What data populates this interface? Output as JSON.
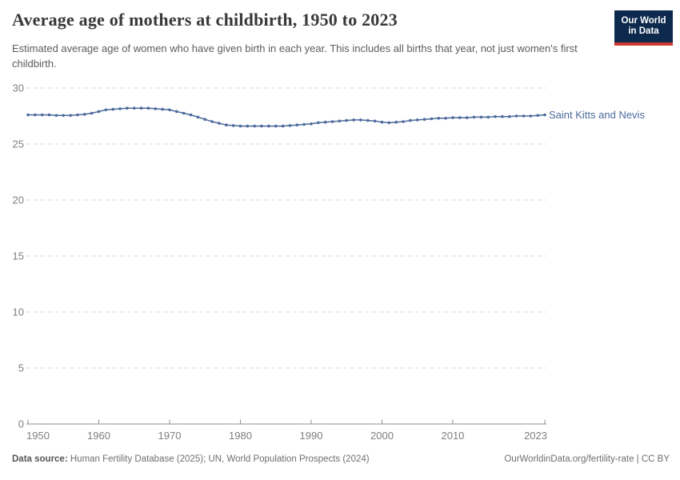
{
  "header": {
    "title": "Average age of mothers at childbirth, 1950 to 2023",
    "subtitle": "Estimated average age of women who have given birth in each year. This includes all births that year, not just women's first childbirth."
  },
  "logo": {
    "line1": "Our World",
    "line2": "in Data",
    "bg_color": "#0d2a4e",
    "accent_color": "#cf3830"
  },
  "chart_data": {
    "type": "line",
    "title": "Average age of mothers at childbirth, 1950 to 2023",
    "series": [
      {
        "name": "Saint Kitts and Nevis",
        "color": "#4c6a9c",
        "x_range": [
          1950,
          2023
        ],
        "x_step": 1,
        "values": [
          27.6,
          27.6,
          27.6,
          27.6,
          27.55,
          27.55,
          27.55,
          27.6,
          27.65,
          27.75,
          27.9,
          28.05,
          28.1,
          28.15,
          28.2,
          28.2,
          28.2,
          28.2,
          28.15,
          28.1,
          28.05,
          27.9,
          27.75,
          27.6,
          27.4,
          27.2,
          27.0,
          26.85,
          26.7,
          26.65,
          26.6,
          26.6,
          26.6,
          26.6,
          26.6,
          26.6,
          26.6,
          26.65,
          26.7,
          26.75,
          26.8,
          26.9,
          26.95,
          27.0,
          27.05,
          27.1,
          27.15,
          27.15,
          27.1,
          27.05,
          26.95,
          26.9,
          26.95,
          27.0,
          27.1,
          27.15,
          27.2,
          27.25,
          27.3,
          27.3,
          27.35,
          27.35,
          27.35,
          27.4,
          27.4,
          27.4,
          27.45,
          27.45,
          27.45,
          27.5,
          27.5,
          27.5,
          27.55,
          27.6
        ]
      }
    ],
    "xticks": [
      1950,
      1960,
      1970,
      1980,
      1990,
      2000,
      2010,
      2023
    ],
    "yticks": [
      0,
      5,
      10,
      15,
      20,
      25,
      30
    ],
    "ylim": [
      0,
      30
    ],
    "xlabel": "",
    "ylabel": "",
    "grid": "dashed-horizontal",
    "legend_position": "end-of-line-label",
    "colors": {
      "gridline": "#dadada",
      "axis": "#8f8f8f",
      "tick_label": "#7e7e7e"
    }
  },
  "footer": {
    "source_label": "Data source:",
    "source_text": "Human Fertility Database (2025); UN, World Population Prospects (2024)",
    "right_text": "OurWorldinData.org/fertility-rate | CC BY"
  }
}
